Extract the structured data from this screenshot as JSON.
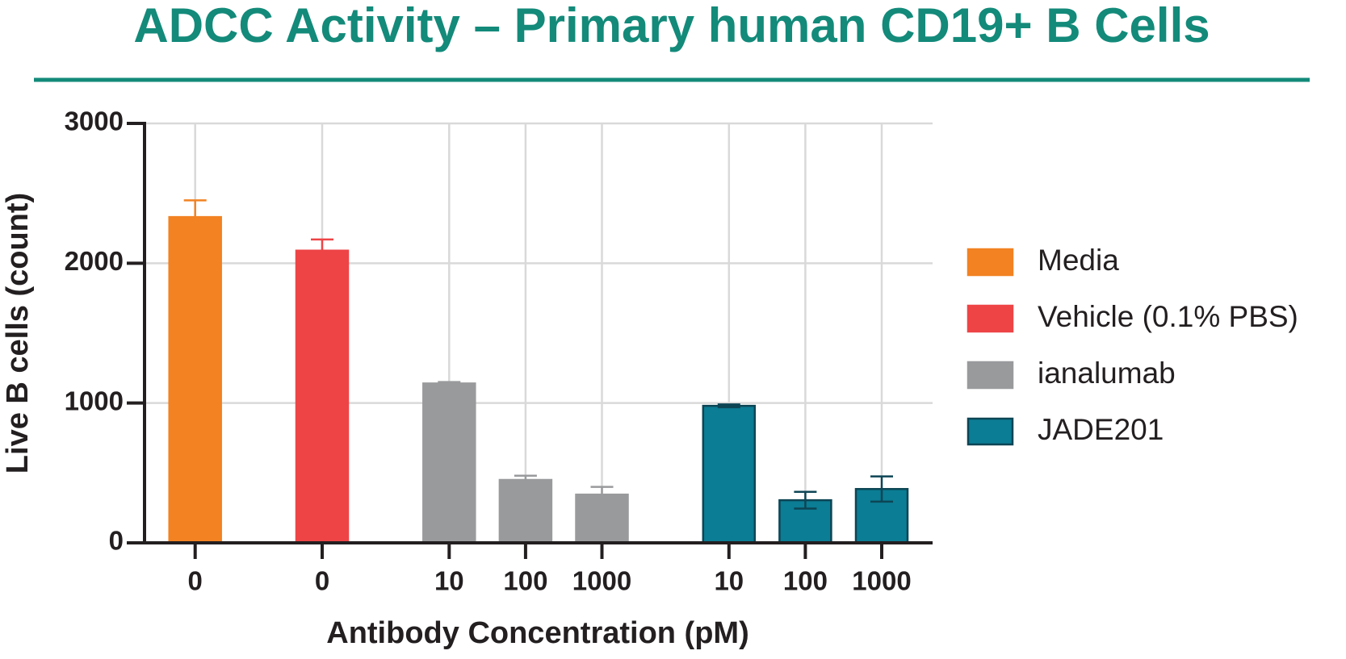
{
  "chart_data": {
    "type": "bar",
    "title": "ADCC Activity – Primary human CD19+ B Cells",
    "x_label": "Antibody Concentration (pM)",
    "y_label": "Live B cells (count)",
    "categories": [
      "0",
      "0",
      "10",
      "100",
      "1000",
      "10",
      "100",
      "1000"
    ],
    "series": [
      {
        "name": "Media",
        "color": "#f28222",
        "edgecolor": "#f28222",
        "values": [
          2330,
          null,
          null,
          null,
          null,
          null,
          null,
          null
        ],
        "errors": [
          120,
          null,
          null,
          null,
          null,
          null,
          null,
          null
        ]
      },
      {
        "name": "Vehicle (0.1% PBS)",
        "color": "#ee4446",
        "edgecolor": "#ee4446",
        "values": [
          null,
          2090,
          null,
          null,
          null,
          null,
          null,
          null
        ],
        "errors": [
          null,
          80,
          null,
          null,
          null,
          null,
          null,
          null
        ]
      },
      {
        "name": "ianalumab",
        "color": "#999a9c",
        "edgecolor": "#999a9c",
        "values": [
          null,
          null,
          1140,
          450,
          345,
          null,
          null,
          null
        ],
        "errors": [
          null,
          null,
          10,
          30,
          55,
          null,
          null,
          null
        ]
      },
      {
        "name": "JADE201",
        "color": "#0b7d94",
        "edgecolor": "#0d4555",
        "values": [
          null,
          null,
          null,
          null,
          null,
          980,
          305,
          385
        ],
        "errors": [
          null,
          null,
          null,
          null,
          null,
          10,
          60,
          90
        ]
      }
    ],
    "ylim": [
      0,
      3000
    ],
    "yticks": [
      0,
      1000,
      2000,
      3000
    ],
    "grid": true,
    "legend": "right"
  }
}
